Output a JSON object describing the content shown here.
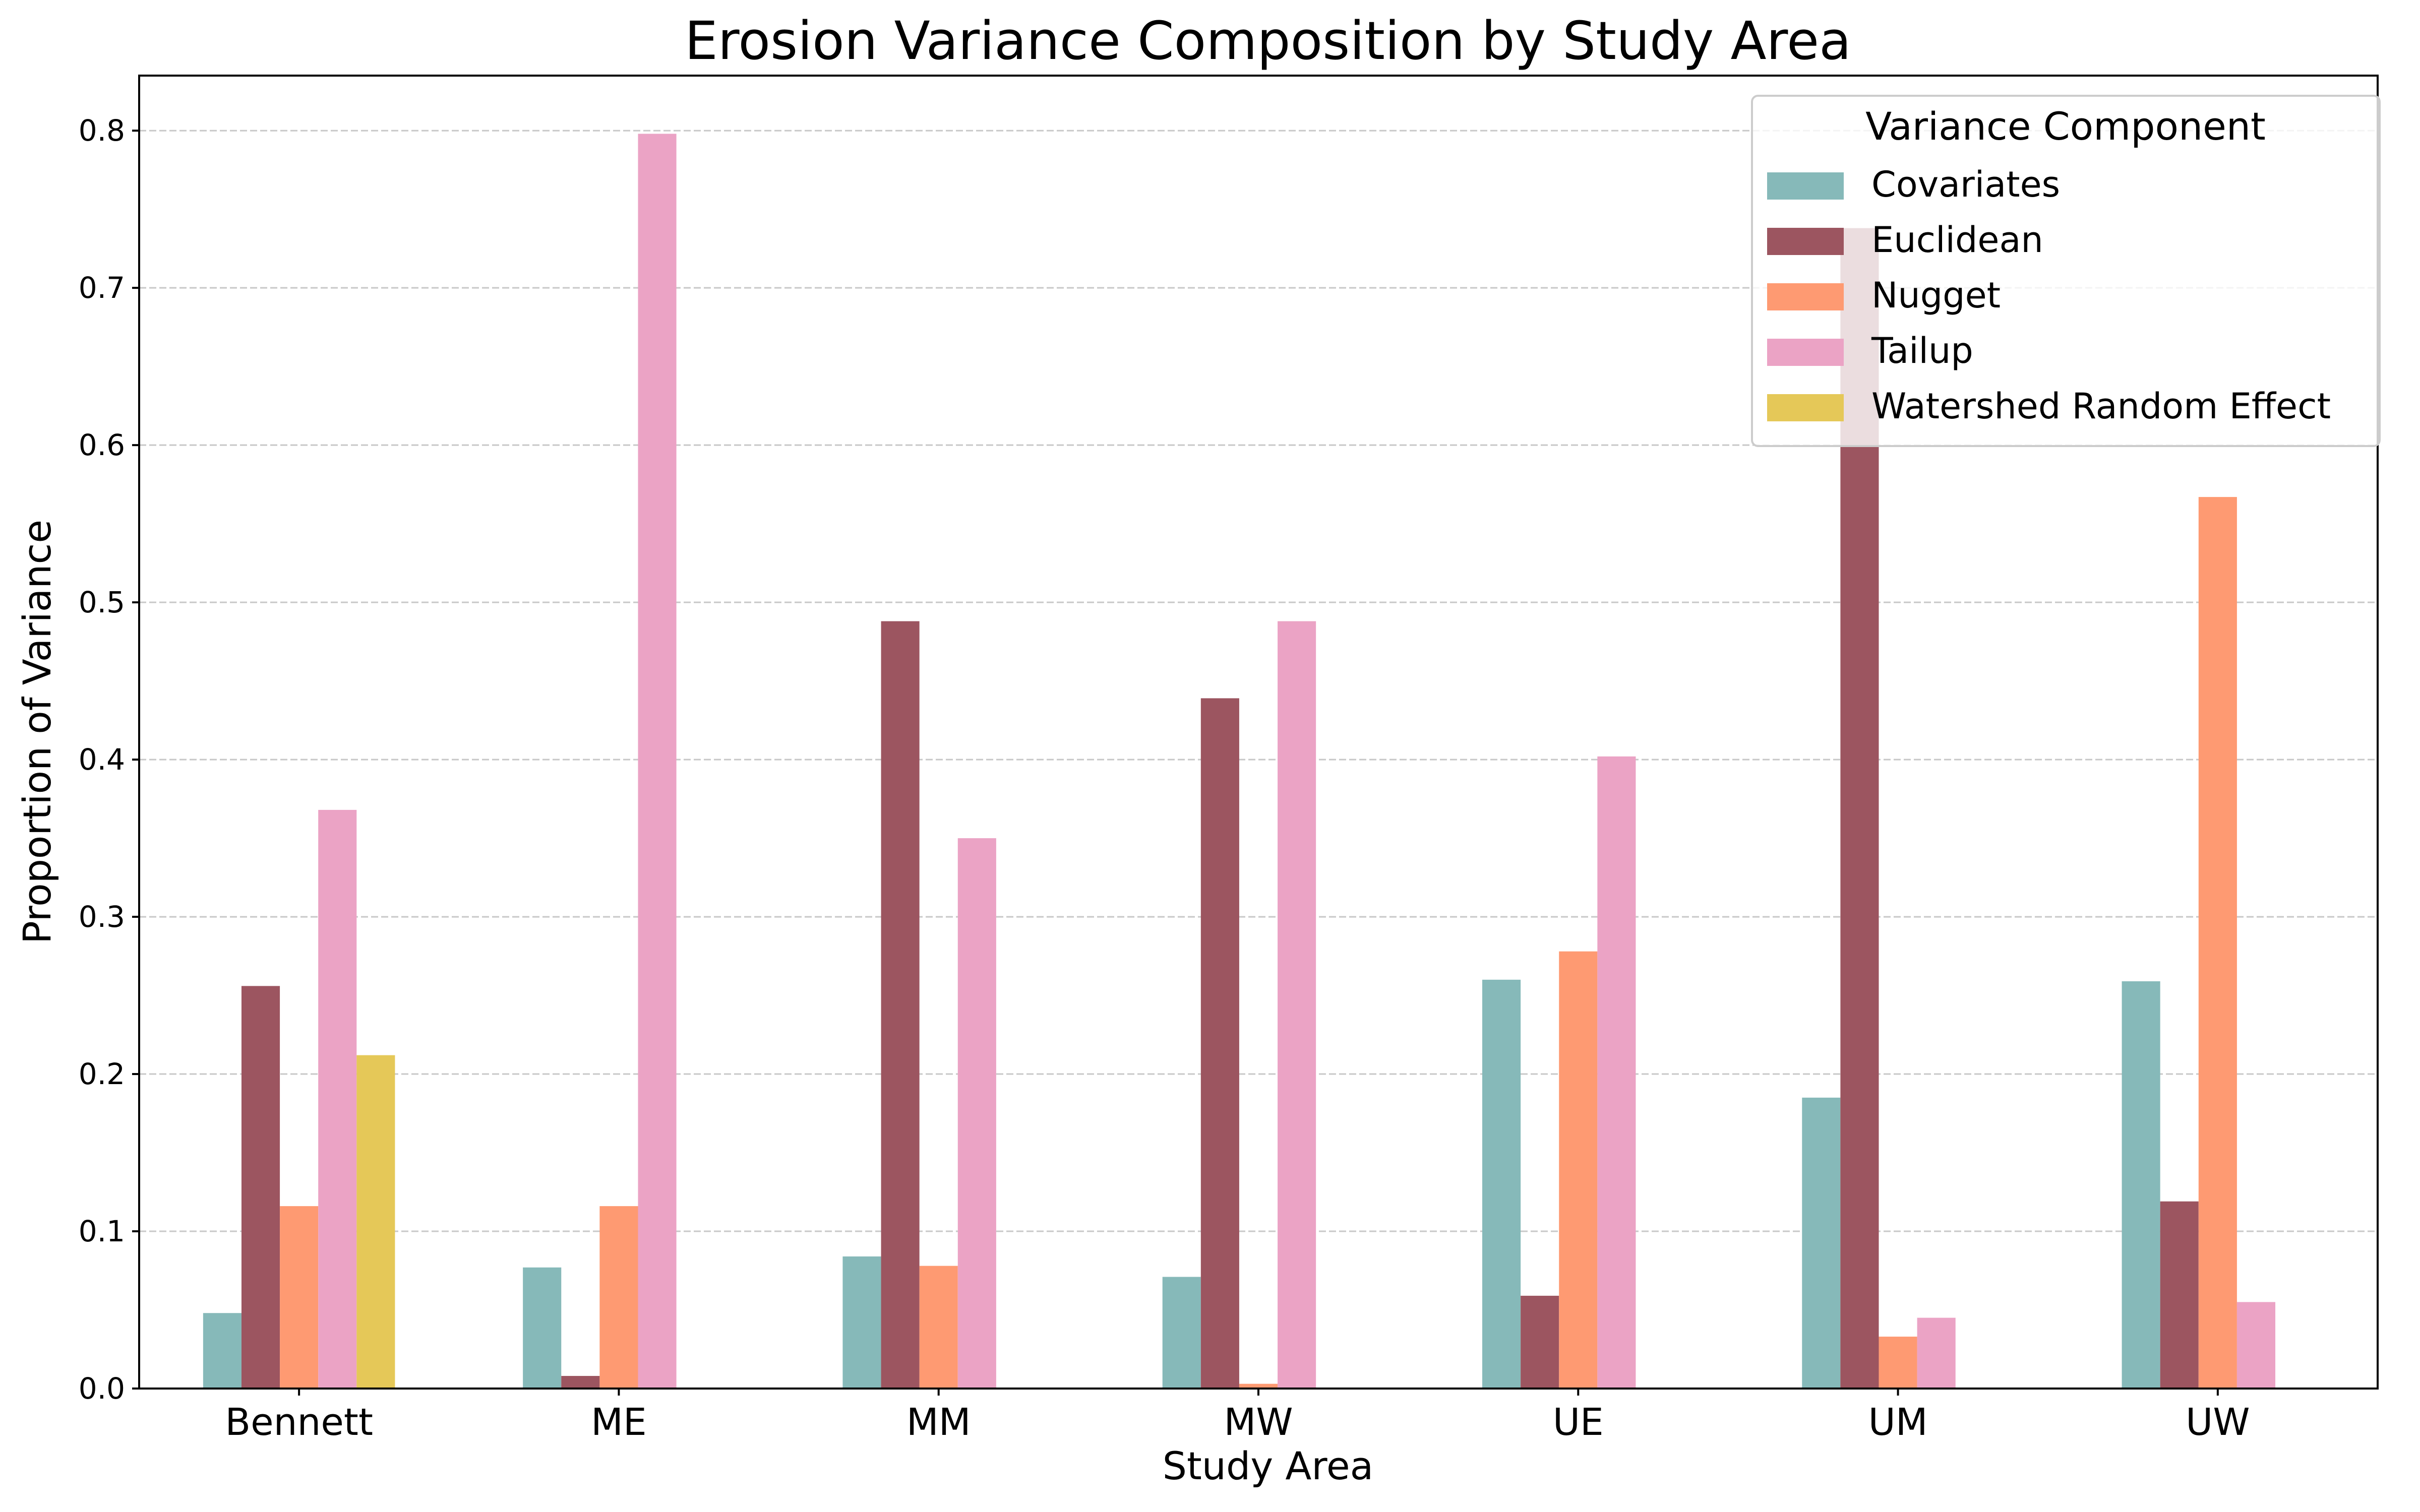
{
  "chart_data": {
    "type": "bar",
    "title": "Erosion Variance Composition by Study Area",
    "xlabel": "Study Area",
    "ylabel": "Proportion of Variance",
    "ylim": [
      0,
      0.835
    ],
    "y_ticks": [
      "0.0",
      "0.1",
      "0.2",
      "0.3",
      "0.4",
      "0.5",
      "0.6",
      "0.7",
      "0.8"
    ],
    "grid": "horizontal dashed",
    "legend": {
      "title": "Variance Component",
      "placement": "top-right"
    },
    "categories": [
      "Bennett",
      "ME",
      "MM",
      "MW",
      "UE",
      "UM",
      "UW"
    ],
    "series": [
      {
        "name": "Covariates",
        "color": "#86b9b9",
        "values": [
          0.048,
          0.077,
          0.084,
          0.071,
          0.26,
          0.185,
          0.259
        ]
      },
      {
        "name": "Euclidean",
        "color": "#9c5560",
        "values": [
          0.256,
          0.008,
          0.488,
          0.439,
          0.059,
          0.738,
          0.119
        ]
      },
      {
        "name": "Nugget",
        "color": "#fe9a72",
        "values": [
          0.116,
          0.116,
          0.078,
          0.003,
          0.278,
          0.033,
          0.567
        ]
      },
      {
        "name": "Tailup",
        "color": "#eba3c5",
        "values": [
          0.368,
          0.798,
          0.35,
          0.488,
          0.402,
          0.045,
          0.055
        ]
      },
      {
        "name": "Watershed Random Effect",
        "color": "#e5c858",
        "values": [
          0.212,
          0,
          0,
          0,
          0,
          0,
          0
        ]
      }
    ]
  }
}
